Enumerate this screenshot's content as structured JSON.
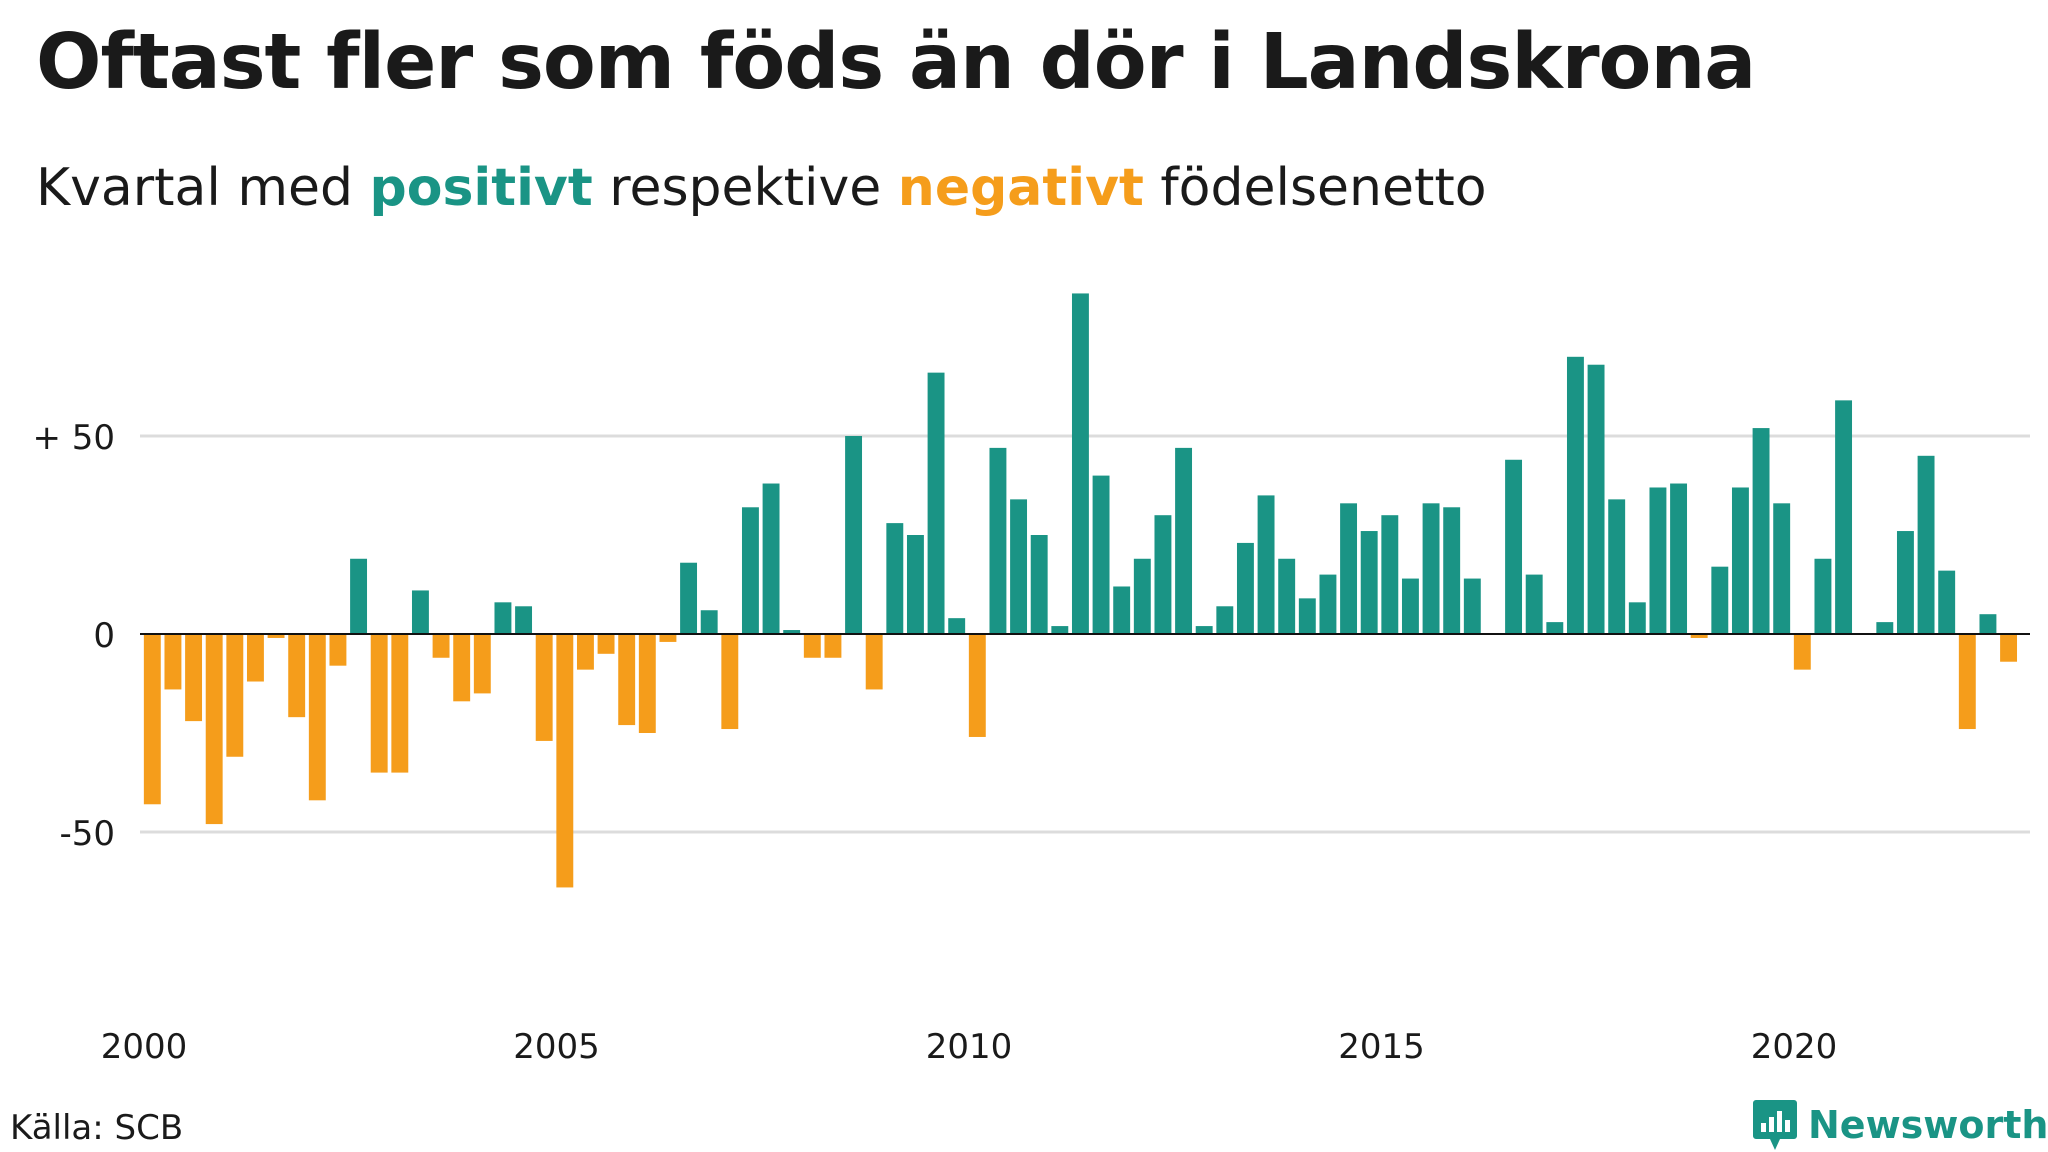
{
  "title": "Oftast fler som föds än dör i Landskrona",
  "subtitle": {
    "pre": "Kvartal med ",
    "positive": "positivt",
    "mid": " respektive ",
    "negative": "negativt",
    "post": " födelsenetto"
  },
  "source": "Källa: SCB",
  "brand": "Newsworthy",
  "colors": {
    "positive": "#1a9485",
    "negative": "#f59d1b",
    "grid": "#dcdcdc",
    "axis": "#111111"
  },
  "chart_data": {
    "type": "bar",
    "title": "Oftast fler som föds än dör i Landskrona",
    "subtitle": "Kvartal med positivt respektive negativt födelsenetto",
    "xlabel": "",
    "ylabel": "",
    "x_start": 2000,
    "periods_per_year": 4,
    "xlim": [
      2000,
      2023
    ],
    "ylim": [
      -90,
      90
    ],
    "grid": true,
    "y_ticks": [
      {
        "value": 50,
        "label": "+ 50"
      },
      {
        "value": 0,
        "label": "0"
      },
      {
        "value": -50,
        "label": "-50"
      }
    ],
    "x_ticks": [
      {
        "value": 2000,
        "label": "2000"
      },
      {
        "value": 2005,
        "label": "2005"
      },
      {
        "value": 2010,
        "label": "2010"
      },
      {
        "value": 2015,
        "label": "2015"
      },
      {
        "value": 2020,
        "label": "2020"
      }
    ],
    "values": [
      -43,
      -14,
      -22,
      -48,
      -31,
      -12,
      -1,
      -21,
      -42,
      -8,
      19,
      -35,
      -35,
      11,
      -6,
      -17,
      -15,
      8,
      7,
      -27,
      -64,
      -9,
      -5,
      -23,
      -25,
      -2,
      18,
      6,
      -24,
      32,
      38,
      1,
      -6,
      -6,
      50,
      -14,
      28,
      25,
      66,
      4,
      -26,
      47,
      34,
      25,
      2,
      86,
      40,
      12,
      19,
      30,
      47,
      2,
      7,
      23,
      35,
      19,
      9,
      15,
      33,
      26,
      30,
      14,
      33,
      32,
      14,
      0,
      44,
      15,
      3,
      70,
      68,
      34,
      8,
      37,
      38,
      -1,
      17,
      37,
      52,
      33,
      -9,
      19,
      59,
      0,
      3,
      26,
      45,
      16,
      -24,
      5,
      -7
    ]
  }
}
